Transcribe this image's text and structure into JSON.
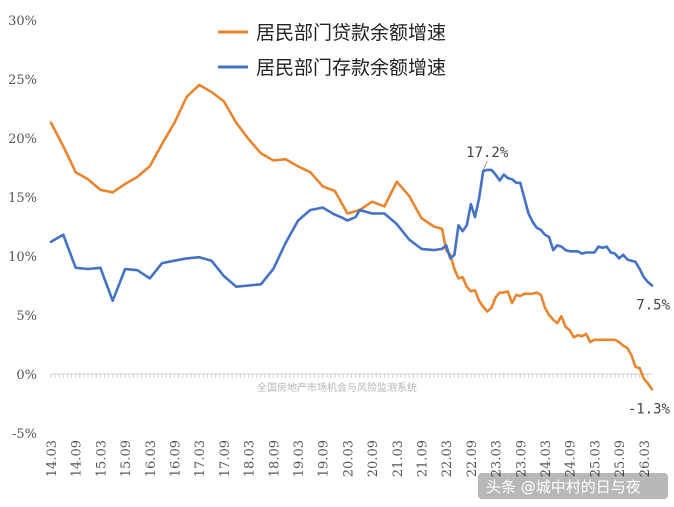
{
  "colors": {
    "loan": "#e8862f",
    "deposit": "#4472c4",
    "text": "#555555",
    "axis": "#cfcfcf"
  },
  "watermark": "全国房地产市场机会与风险监测系统",
  "brand": "头条 @城中村的日与夜",
  "chart_data": {
    "type": "line",
    "title": "",
    "xlabel": "",
    "ylabel": "",
    "ylim": [
      -5,
      30
    ],
    "yticks": [
      {
        "value": -5,
        "label": "-5%"
      },
      {
        "value": 0,
        "label": "0%"
      },
      {
        "value": 5,
        "label": "5%"
      },
      {
        "value": 10,
        "label": "10%"
      },
      {
        "value": 15,
        "label": "15%"
      },
      {
        "value": 20,
        "label": "20%"
      },
      {
        "value": 25,
        "label": "25%"
      },
      {
        "value": 30,
        "label": "30%"
      }
    ],
    "xlim": [
      2014.1667,
      2026.3333
    ],
    "xticks": [
      {
        "value": 2014.1667,
        "label": "14.03"
      },
      {
        "value": 2014.6667,
        "label": "14.09"
      },
      {
        "value": 2015.1667,
        "label": "15.03"
      },
      {
        "value": 2015.6667,
        "label": "15.09"
      },
      {
        "value": 2016.1667,
        "label": "16.03"
      },
      {
        "value": 2016.6667,
        "label": "16.09"
      },
      {
        "value": 2017.1667,
        "label": "17.03"
      },
      {
        "value": 2017.6667,
        "label": "17.09"
      },
      {
        "value": 2018.1667,
        "label": "18.03"
      },
      {
        "value": 2018.6667,
        "label": "18.09"
      },
      {
        "value": 2019.1667,
        "label": "19.03"
      },
      {
        "value": 2019.6667,
        "label": "19.09"
      },
      {
        "value": 2020.1667,
        "label": "20.03"
      },
      {
        "value": 2020.6667,
        "label": "20.09"
      },
      {
        "value": 2021.1667,
        "label": "21.03"
      },
      {
        "value": 2021.6667,
        "label": "21.09"
      },
      {
        "value": 2022.1667,
        "label": "22.03"
      },
      {
        "value": 2022.6667,
        "label": "22.09"
      },
      {
        "value": 2023.1667,
        "label": "23.03"
      },
      {
        "value": 2023.6667,
        "label": "23.09"
      },
      {
        "value": 2024.1667,
        "label": "24.03"
      },
      {
        "value": 2024.6667,
        "label": "24.09"
      },
      {
        "value": 2025.1667,
        "label": "25.03"
      },
      {
        "value": 2025.6667,
        "label": "25.09"
      },
      {
        "value": 2026.1667,
        "label": "26.03"
      }
    ],
    "legend_position": "top-center",
    "series": [
      {
        "name": "居民部门贷款余额增速",
        "color": "#e8862f",
        "points": [
          [
            2014.1667,
            21.3
          ],
          [
            2014.4167,
            19.3
          ],
          [
            2014.6667,
            17.1
          ],
          [
            2014.9167,
            16.5
          ],
          [
            2015.1667,
            15.6
          ],
          [
            2015.4167,
            15.4
          ],
          [
            2015.6667,
            16.1
          ],
          [
            2015.9167,
            16.7
          ],
          [
            2016.1667,
            17.6
          ],
          [
            2016.4167,
            19.5
          ],
          [
            2016.6667,
            21.3
          ],
          [
            2016.9167,
            23.5
          ],
          [
            2017.1667,
            24.5
          ],
          [
            2017.4167,
            23.9
          ],
          [
            2017.6667,
            23.1
          ],
          [
            2017.9167,
            21.3
          ],
          [
            2018.1667,
            19.9
          ],
          [
            2018.4167,
            18.7
          ],
          [
            2018.6667,
            18.1
          ],
          [
            2018.9167,
            18.2
          ],
          [
            2019.1667,
            17.6
          ],
          [
            2019.4167,
            17.1
          ],
          [
            2019.6667,
            15.9
          ],
          [
            2019.9167,
            15.5
          ],
          [
            2020.1667,
            13.6
          ],
          [
            2020.4167,
            13.9
          ],
          [
            2020.6667,
            14.6
          ],
          [
            2020.9167,
            14.2
          ],
          [
            2021.1667,
            16.3
          ],
          [
            2021.4167,
            15.1
          ],
          [
            2021.6667,
            13.2
          ],
          [
            2021.9167,
            12.5
          ],
          [
            2022.0833,
            12.3
          ],
          [
            2022.1667,
            10.5
          ],
          [
            2022.25,
            10.1
          ],
          [
            2022.3333,
            8.9
          ],
          [
            2022.4167,
            8.1
          ],
          [
            2022.5,
            8.2
          ],
          [
            2022.5833,
            7.4
          ],
          [
            2022.6667,
            7.0
          ],
          [
            2022.75,
            7.1
          ],
          [
            2022.8333,
            6.2
          ],
          [
            2022.9167,
            5.7
          ],
          [
            2023.0,
            5.3
          ],
          [
            2023.0833,
            5.6
          ],
          [
            2023.1667,
            6.5
          ],
          [
            2023.25,
            6.9
          ],
          [
            2023.3333,
            6.9
          ],
          [
            2023.4167,
            7.0
          ],
          [
            2023.5,
            6.0
          ],
          [
            2023.5833,
            6.7
          ],
          [
            2023.6667,
            6.6
          ],
          [
            2023.75,
            6.8
          ],
          [
            2023.8333,
            6.8
          ],
          [
            2023.9167,
            6.8
          ],
          [
            2024.0,
            6.9
          ],
          [
            2024.0833,
            6.7
          ],
          [
            2024.1667,
            5.6
          ],
          [
            2024.25,
            5.0
          ],
          [
            2024.3333,
            4.6
          ],
          [
            2024.4167,
            4.3
          ],
          [
            2024.5,
            4.9
          ],
          [
            2024.5833,
            4.0
          ],
          [
            2024.6667,
            3.7
          ],
          [
            2024.75,
            3.1
          ],
          [
            2024.8333,
            3.3
          ],
          [
            2024.9167,
            3.2
          ],
          [
            2025.0,
            3.4
          ],
          [
            2025.0833,
            2.7
          ],
          [
            2025.1667,
            2.9
          ],
          [
            2025.25,
            2.9
          ],
          [
            2025.3333,
            2.9
          ],
          [
            2025.4167,
            2.9
          ],
          [
            2025.5,
            2.9
          ],
          [
            2025.5833,
            2.9
          ],
          [
            2025.6667,
            2.7
          ],
          [
            2025.75,
            2.4
          ],
          [
            2025.8333,
            2.2
          ],
          [
            2025.9167,
            1.6
          ],
          [
            2026.0,
            0.6
          ],
          [
            2026.0833,
            0.5
          ],
          [
            2026.1667,
            -0.4
          ],
          [
            2026.25,
            -0.8
          ],
          [
            2026.3333,
            -1.3
          ]
        ]
      },
      {
        "name": "居民部门存款余额增速",
        "color": "#4472c4",
        "points": [
          [
            2014.1667,
            11.2
          ],
          [
            2014.4167,
            11.8
          ],
          [
            2014.6667,
            9.0
          ],
          [
            2014.9167,
            8.9
          ],
          [
            2015.1667,
            9.0
          ],
          [
            2015.4167,
            6.2
          ],
          [
            2015.6667,
            8.9
          ],
          [
            2015.9167,
            8.8
          ],
          [
            2016.1667,
            8.1
          ],
          [
            2016.4167,
            9.4
          ],
          [
            2016.6667,
            9.6
          ],
          [
            2016.9167,
            9.8
          ],
          [
            2017.1667,
            9.9
          ],
          [
            2017.4167,
            9.6
          ],
          [
            2017.6667,
            8.3
          ],
          [
            2017.9167,
            7.4
          ],
          [
            2018.1667,
            7.5
          ],
          [
            2018.4167,
            7.6
          ],
          [
            2018.6667,
            8.9
          ],
          [
            2018.9167,
            11.1
          ],
          [
            2019.1667,
            13.0
          ],
          [
            2019.4167,
            13.9
          ],
          [
            2019.6667,
            14.1
          ],
          [
            2019.9167,
            13.5
          ],
          [
            2020.0833,
            13.2
          ],
          [
            2020.1667,
            13.0
          ],
          [
            2020.3333,
            13.3
          ],
          [
            2020.4167,
            13.9
          ],
          [
            2020.6667,
            13.6
          ],
          [
            2020.9167,
            13.6
          ],
          [
            2021.1667,
            12.7
          ],
          [
            2021.4167,
            11.4
          ],
          [
            2021.6667,
            10.6
          ],
          [
            2021.9167,
            10.5
          ],
          [
            2022.0833,
            10.6
          ],
          [
            2022.1667,
            10.9
          ],
          [
            2022.25,
            9.8
          ],
          [
            2022.3333,
            10.1
          ],
          [
            2022.4167,
            12.6
          ],
          [
            2022.5,
            12.1
          ],
          [
            2022.5833,
            12.6
          ],
          [
            2022.6667,
            14.4
          ],
          [
            2022.75,
            13.3
          ],
          [
            2022.8333,
            14.9
          ],
          [
            2022.9167,
            17.2
          ],
          [
            2023.0,
            17.3
          ],
          [
            2023.0833,
            17.3
          ],
          [
            2023.1667,
            16.9
          ],
          [
            2023.25,
            16.4
          ],
          [
            2023.3333,
            16.9
          ],
          [
            2023.4167,
            16.6
          ],
          [
            2023.5,
            16.5
          ],
          [
            2023.5833,
            16.2
          ],
          [
            2023.6667,
            16.2
          ],
          [
            2023.75,
            14.9
          ],
          [
            2023.8333,
            13.6
          ],
          [
            2023.9167,
            12.9
          ],
          [
            2024.0,
            12.4
          ],
          [
            2024.0833,
            12.2
          ],
          [
            2024.1667,
            11.8
          ],
          [
            2024.25,
            11.6
          ],
          [
            2024.3333,
            10.5
          ],
          [
            2024.4167,
            10.9
          ],
          [
            2024.5,
            10.8
          ],
          [
            2024.5833,
            10.5
          ],
          [
            2024.6667,
            10.4
          ],
          [
            2024.75,
            10.4
          ],
          [
            2024.8333,
            10.4
          ],
          [
            2024.9167,
            10.2
          ],
          [
            2025.0,
            10.3
          ],
          [
            2025.0833,
            10.3
          ],
          [
            2025.1667,
            10.3
          ],
          [
            2025.25,
            10.8
          ],
          [
            2025.3333,
            10.7
          ],
          [
            2025.4167,
            10.8
          ],
          [
            2025.5,
            10.3
          ],
          [
            2025.5833,
            10.2
          ],
          [
            2025.6667,
            9.8
          ],
          [
            2025.75,
            10.1
          ],
          [
            2025.8333,
            9.7
          ],
          [
            2025.9167,
            9.6
          ],
          [
            2026.0,
            9.5
          ],
          [
            2026.0833,
            8.9
          ],
          [
            2026.1667,
            8.2
          ],
          [
            2026.25,
            7.8
          ],
          [
            2026.3333,
            7.5
          ]
        ]
      }
    ],
    "annotations": [
      {
        "text": "17.2%",
        "x": 2022.9167,
        "y": 17.2,
        "series": 1,
        "anchor": "above"
      },
      {
        "text": "7.5%",
        "x": 2026.3333,
        "y": 7.5,
        "series": 1,
        "anchor": "below"
      },
      {
        "text": "-1.3%",
        "x": 2026.3333,
        "y": -1.3,
        "series": 0,
        "anchor": "below"
      }
    ]
  }
}
